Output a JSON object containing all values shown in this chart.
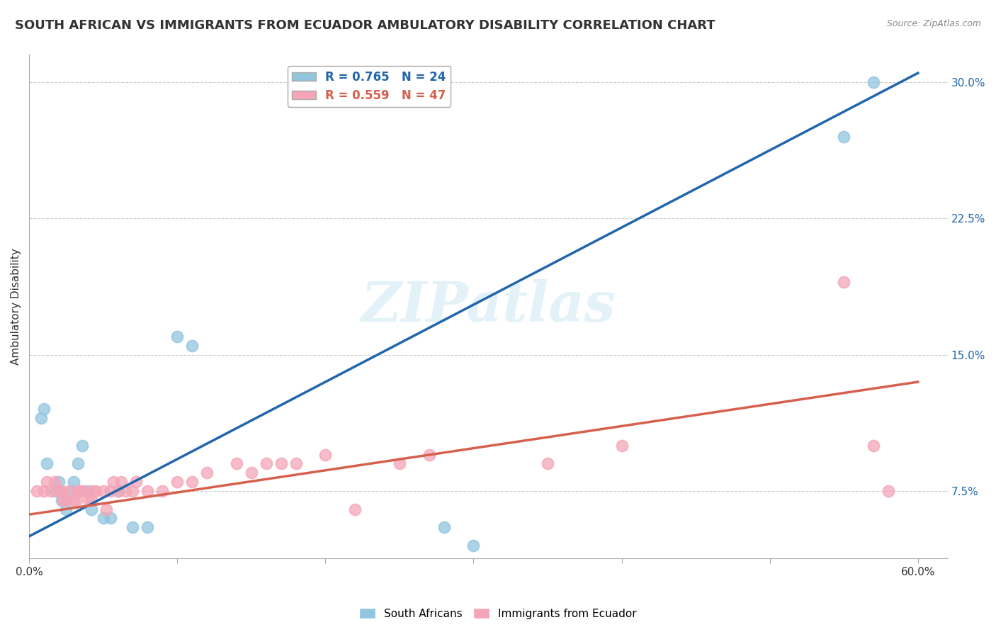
{
  "title": "SOUTH AFRICAN VS IMMIGRANTS FROM ECUADOR AMBULATORY DISABILITY CORRELATION CHART",
  "source": "Source: ZipAtlas.com",
  "ylabel": "Ambulatory Disability",
  "xlim": [
    0.0,
    0.62
  ],
  "ylim": [
    0.038,
    0.315
  ],
  "xticks": [
    0.0,
    0.1,
    0.2,
    0.3,
    0.4,
    0.5,
    0.6
  ],
  "yticks": [
    0.075,
    0.15,
    0.225,
    0.3
  ],
  "ytick_labels": [
    "7.5%",
    "15.0%",
    "22.5%",
    "30.0%"
  ],
  "xtick_labels": [
    "0.0%",
    "",
    "",
    "",
    "",
    "",
    "60.0%"
  ],
  "blue_R": 0.765,
  "blue_N": 24,
  "pink_R": 0.559,
  "pink_N": 47,
  "blue_color": "#92c5de",
  "pink_color": "#f4a6b8",
  "blue_line_color": "#2166ac",
  "pink_line_color": "#d6604d",
  "watermark": "ZIPatlas",
  "blue_scatter_x": [
    0.008,
    0.01,
    0.012,
    0.018,
    0.02,
    0.022,
    0.025,
    0.028,
    0.03,
    0.033,
    0.036,
    0.04,
    0.042,
    0.05,
    0.055,
    0.06,
    0.07,
    0.08,
    0.1,
    0.11,
    0.28,
    0.3,
    0.55,
    0.57
  ],
  "blue_scatter_y": [
    0.115,
    0.12,
    0.09,
    0.075,
    0.08,
    0.07,
    0.065,
    0.075,
    0.08,
    0.09,
    0.1,
    0.075,
    0.065,
    0.06,
    0.06,
    0.075,
    0.055,
    0.055,
    0.16,
    0.155,
    0.055,
    0.045,
    0.27,
    0.3
  ],
  "pink_scatter_x": [
    0.005,
    0.01,
    0.012,
    0.015,
    0.017,
    0.02,
    0.022,
    0.023,
    0.025,
    0.027,
    0.03,
    0.032,
    0.033,
    0.035,
    0.037,
    0.04,
    0.042,
    0.043,
    0.045,
    0.05,
    0.052,
    0.055,
    0.057,
    0.06,
    0.062,
    0.065,
    0.07,
    0.072,
    0.08,
    0.09,
    0.1,
    0.11,
    0.12,
    0.14,
    0.15,
    0.16,
    0.17,
    0.18,
    0.2,
    0.22,
    0.25,
    0.27,
    0.35,
    0.4,
    0.55,
    0.57,
    0.58
  ],
  "pink_scatter_y": [
    0.075,
    0.075,
    0.08,
    0.075,
    0.08,
    0.075,
    0.075,
    0.07,
    0.07,
    0.075,
    0.07,
    0.07,
    0.075,
    0.075,
    0.075,
    0.07,
    0.07,
    0.075,
    0.075,
    0.075,
    0.065,
    0.075,
    0.08,
    0.075,
    0.08,
    0.075,
    0.075,
    0.08,
    0.075,
    0.075,
    0.08,
    0.08,
    0.085,
    0.09,
    0.085,
    0.09,
    0.09,
    0.09,
    0.095,
    0.065,
    0.09,
    0.095,
    0.09,
    0.1,
    0.19,
    0.1,
    0.075
  ],
  "blue_trendline_x": [
    0.0,
    0.6
  ],
  "blue_trendline_y": [
    0.05,
    0.305
  ],
  "pink_trendline_x": [
    0.0,
    0.6
  ],
  "pink_trendline_y": [
    0.062,
    0.135
  ],
  "background_color": "#ffffff",
  "grid_color": "#cccccc",
  "title_fontsize": 13,
  "label_fontsize": 11,
  "tick_fontsize": 11,
  "legend_fontsize": 12
}
